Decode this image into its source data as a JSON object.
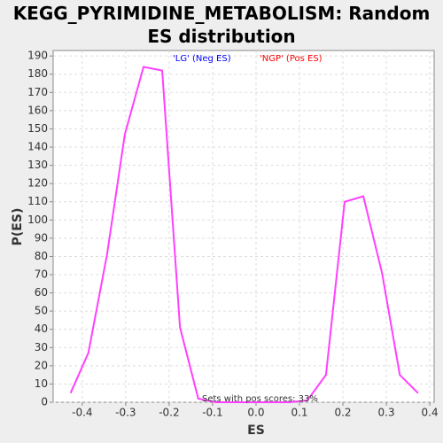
{
  "chart_data": {
    "type": "line",
    "title": "KEGG_PYRIMIDINE_METABOLISM: Random ES distribution",
    "x_label": "ES",
    "y_label": "P(ES)",
    "x": [
      -0.427,
      -0.386,
      -0.343,
      -0.302,
      -0.259,
      -0.216,
      -0.175,
      -0.133,
      -0.092,
      -0.05,
      -0.009,
      0.033,
      0.076,
      0.118,
      0.161,
      0.204,
      0.247,
      0.29,
      0.331,
      0.373
    ],
    "series": [
      {
        "name": "P(ES)",
        "color": "#ff40ff",
        "values": [
          5,
          27,
          81,
          147,
          184,
          182,
          41,
          2,
          0,
          0,
          0,
          0,
          0,
          1,
          15,
          110,
          113,
          71,
          15,
          5
        ]
      }
    ],
    "xlim": [
      -0.467,
      0.41
    ],
    "ylim": [
      0,
      193
    ],
    "xticks": [
      -0.4,
      -0.3,
      -0.2,
      -0.1,
      {
        "value": 0,
        "label": "0.0"
      },
      0.1,
      0.2,
      0.3,
      0.4
    ],
    "yticks": [
      0,
      10,
      20,
      30,
      40,
      50,
      60,
      70,
      80,
      90,
      100,
      110,
      120,
      130,
      140,
      150,
      160,
      170,
      180,
      190
    ],
    "grid": true,
    "annotations": [
      {
        "text": "'LG' (Neg ES)",
        "color": "#0000ff"
      },
      {
        "text": "'NGP' (Pos ES)",
        "color": "#ff0000"
      },
      {
        "text": "Sets with pos scores: 33%",
        "color": "#333333"
      }
    ]
  }
}
